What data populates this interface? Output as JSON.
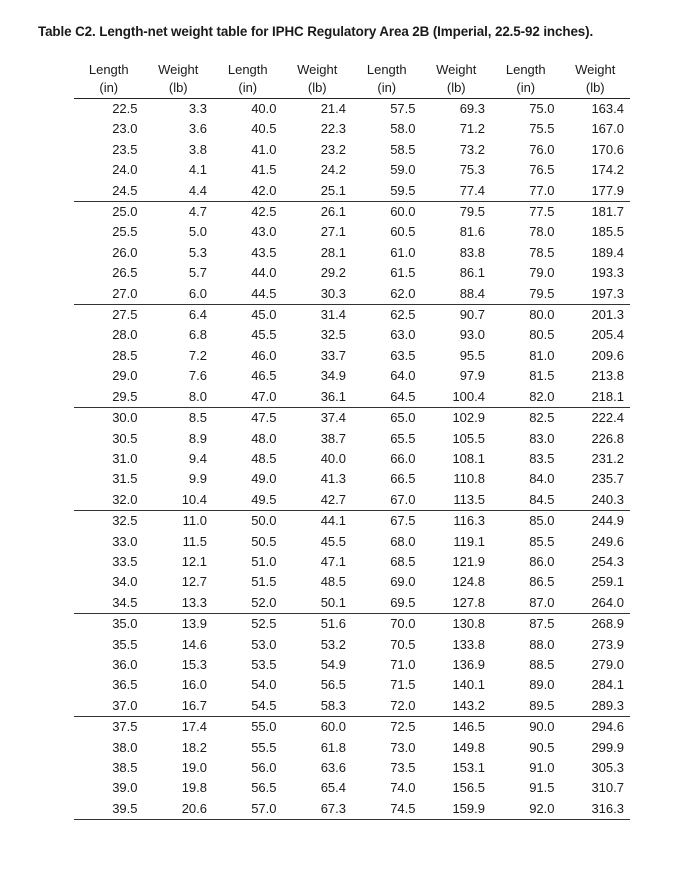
{
  "title": "Table C2. Length-net weight table for IPHC Regulatory Area 2B (Imperial, 22.5-92 inches).",
  "headers": [
    {
      "name": "Length",
      "unit": "(in)"
    },
    {
      "name": "Weight",
      "unit": "(lb)"
    },
    {
      "name": "Length",
      "unit": "(in)"
    },
    {
      "name": "Weight",
      "unit": "(lb)"
    },
    {
      "name": "Length",
      "unit": "(in)"
    },
    {
      "name": "Weight",
      "unit": "(lb)"
    },
    {
      "name": "Length",
      "unit": "(in)"
    },
    {
      "name": "Weight",
      "unit": "(lb)"
    }
  ],
  "rows": [
    [
      "22.5",
      "3.3",
      "40.0",
      "21.4",
      "57.5",
      "69.3",
      "75.0",
      "163.4"
    ],
    [
      "23.0",
      "3.6",
      "40.5",
      "22.3",
      "58.0",
      "71.2",
      "75.5",
      "167.0"
    ],
    [
      "23.5",
      "3.8",
      "41.0",
      "23.2",
      "58.5",
      "73.2",
      "76.0",
      "170.6"
    ],
    [
      "24.0",
      "4.1",
      "41.5",
      "24.2",
      "59.0",
      "75.3",
      "76.5",
      "174.2"
    ],
    [
      "24.5",
      "4.4",
      "42.0",
      "25.1",
      "59.5",
      "77.4",
      "77.0",
      "177.9"
    ],
    [
      "25.0",
      "4.7",
      "42.5",
      "26.1",
      "60.0",
      "79.5",
      "77.5",
      "181.7"
    ],
    [
      "25.5",
      "5.0",
      "43.0",
      "27.1",
      "60.5",
      "81.6",
      "78.0",
      "185.5"
    ],
    [
      "26.0",
      "5.3",
      "43.5",
      "28.1",
      "61.0",
      "83.8",
      "78.5",
      "189.4"
    ],
    [
      "26.5",
      "5.7",
      "44.0",
      "29.2",
      "61.5",
      "86.1",
      "79.0",
      "193.3"
    ],
    [
      "27.0",
      "6.0",
      "44.5",
      "30.3",
      "62.0",
      "88.4",
      "79.5",
      "197.3"
    ],
    [
      "27.5",
      "6.4",
      "45.0",
      "31.4",
      "62.5",
      "90.7",
      "80.0",
      "201.3"
    ],
    [
      "28.0",
      "6.8",
      "45.5",
      "32.5",
      "63.0",
      "93.0",
      "80.5",
      "205.4"
    ],
    [
      "28.5",
      "7.2",
      "46.0",
      "33.7",
      "63.5",
      "95.5",
      "81.0",
      "209.6"
    ],
    [
      "29.0",
      "7.6",
      "46.5",
      "34.9",
      "64.0",
      "97.9",
      "81.5",
      "213.8"
    ],
    [
      "29.5",
      "8.0",
      "47.0",
      "36.1",
      "64.5",
      "100.4",
      "82.0",
      "218.1"
    ],
    [
      "30.0",
      "8.5",
      "47.5",
      "37.4",
      "65.0",
      "102.9",
      "82.5",
      "222.4"
    ],
    [
      "30.5",
      "8.9",
      "48.0",
      "38.7",
      "65.5",
      "105.5",
      "83.0",
      "226.8"
    ],
    [
      "31.0",
      "9.4",
      "48.5",
      "40.0",
      "66.0",
      "108.1",
      "83.5",
      "231.2"
    ],
    [
      "31.5",
      "9.9",
      "49.0",
      "41.3",
      "66.5",
      "110.8",
      "84.0",
      "235.7"
    ],
    [
      "32.0",
      "10.4",
      "49.5",
      "42.7",
      "67.0",
      "113.5",
      "84.5",
      "240.3"
    ],
    [
      "32.5",
      "11.0",
      "50.0",
      "44.1",
      "67.5",
      "116.3",
      "85.0",
      "244.9"
    ],
    [
      "33.0",
      "11.5",
      "50.5",
      "45.5",
      "68.0",
      "119.1",
      "85.5",
      "249.6"
    ],
    [
      "33.5",
      "12.1",
      "51.0",
      "47.1",
      "68.5",
      "121.9",
      "86.0",
      "254.3"
    ],
    [
      "34.0",
      "12.7",
      "51.5",
      "48.5",
      "69.0",
      "124.8",
      "86.5",
      "259.1"
    ],
    [
      "34.5",
      "13.3",
      "52.0",
      "50.1",
      "69.5",
      "127.8",
      "87.0",
      "264.0"
    ],
    [
      "35.0",
      "13.9",
      "52.5",
      "51.6",
      "70.0",
      "130.8",
      "87.5",
      "268.9"
    ],
    [
      "35.5",
      "14.6",
      "53.0",
      "53.2",
      "70.5",
      "133.8",
      "88.0",
      "273.9"
    ],
    [
      "36.0",
      "15.3",
      "53.5",
      "54.9",
      "71.0",
      "136.9",
      "88.5",
      "279.0"
    ],
    [
      "36.5",
      "16.0",
      "54.0",
      "56.5",
      "71.5",
      "140.1",
      "89.0",
      "284.1"
    ],
    [
      "37.0",
      "16.7",
      "54.5",
      "58.3",
      "72.0",
      "143.2",
      "89.5",
      "289.3"
    ],
    [
      "37.5",
      "17.4",
      "55.0",
      "60.0",
      "72.5",
      "146.5",
      "90.0",
      "294.6"
    ],
    [
      "38.0",
      "18.2",
      "55.5",
      "61.8",
      "73.0",
      "149.8",
      "90.5",
      "299.9"
    ],
    [
      "38.5",
      "19.0",
      "56.0",
      "63.6",
      "73.5",
      "153.1",
      "91.0",
      "305.3"
    ],
    [
      "39.0",
      "19.8",
      "56.5",
      "65.4",
      "74.0",
      "156.5",
      "91.5",
      "310.7"
    ],
    [
      "39.5",
      "20.6",
      "57.0",
      "67.3",
      "74.5",
      "159.9",
      "92.0",
      "316.3"
    ]
  ]
}
